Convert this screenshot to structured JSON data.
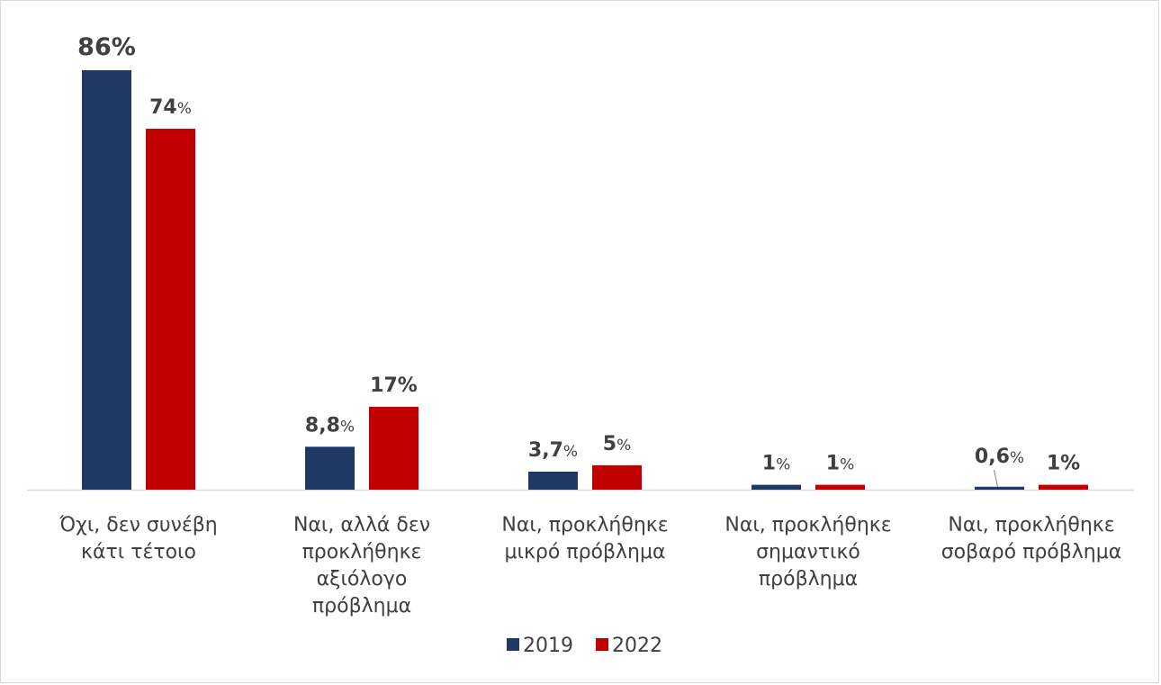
{
  "chart_data": {
    "type": "bar",
    "title": "",
    "xlabel": "",
    "ylabel": "",
    "ylim": [
      0,
      100
    ],
    "grid": false,
    "legend_position": "bottom",
    "categories": [
      [
        "Όχι, δεν συνέβη",
        "κάτι τέτοιο"
      ],
      [
        "Ναι, αλλά δεν",
        "προκλήθηκε",
        "αξιόλογο",
        "πρόβλημα"
      ],
      [
        "Ναι, προκλήθηκε",
        "μικρό πρόβλημα"
      ],
      [
        "Ναι, προκλήθηκε",
        "σημαντικό",
        "πρόβλημα"
      ],
      [
        "Ναι, προκλήθηκε",
        "σοβαρό πρόβλημα"
      ]
    ],
    "series": [
      {
        "name": "2019",
        "color": "#1f3864",
        "values": [
          86,
          8.8,
          3.7,
          1,
          0.6
        ],
        "labels": [
          {
            "num": "86",
            "pct": "%",
            "pct_bold": true
          },
          {
            "num": "8,8",
            "pct": "%",
            "pct_bold": false
          },
          {
            "num": "3,7",
            "pct": "%",
            "pct_bold": false
          },
          {
            "num": "1",
            "pct": "%",
            "pct_bold": false
          },
          {
            "num": "0,6",
            "pct": "%",
            "pct_bold": false
          }
        ]
      },
      {
        "name": "2022",
        "color": "#c00000",
        "values": [
          74,
          17,
          5,
          1,
          1
        ],
        "labels": [
          {
            "num": "74",
            "pct": "%",
            "pct_bold": false
          },
          {
            "num": "17",
            "pct": "%",
            "pct_bold": true
          },
          {
            "num": "5",
            "pct": "%",
            "pct_bold": false
          },
          {
            "num": "1",
            "pct": "%",
            "pct_bold": false
          },
          {
            "num": "1",
            "pct": "%",
            "pct_bold": true
          }
        ]
      }
    ]
  }
}
